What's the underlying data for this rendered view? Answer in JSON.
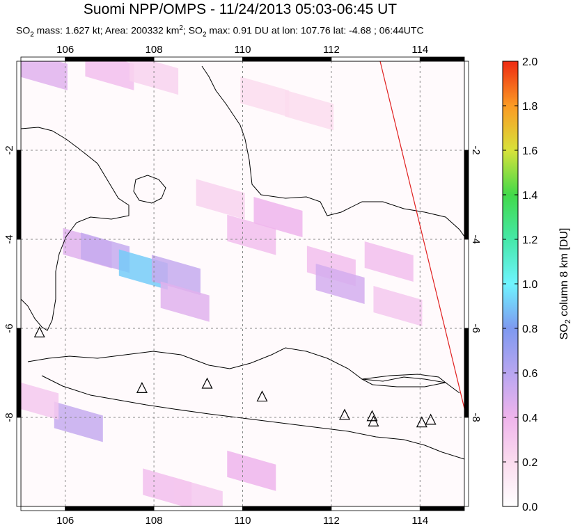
{
  "header": {
    "title": "Suomi NPP/OMPS - 11/24/2013 05:03-06:45 UT",
    "subtitle_parts": {
      "p1": "SO",
      "p1_sub": "2",
      "p2": " mass: 1.627 kt; Area: 200332 km",
      "p2_sup": "2",
      "p3": "; SO",
      "p3_sub": "2",
      "p4": " max: 0.91 DU at lon: 107.76 lat: -4.68 ; 06:44UTC"
    }
  },
  "chart_data": {
    "type": "heatmap",
    "title": "Suomi NPP/OMPS - 11/24/2013 05:03-06:45 UT",
    "xlim": [
      105,
      115
    ],
    "ylim": [
      -10,
      0
    ],
    "x_ticks": [
      106,
      108,
      110,
      112,
      114
    ],
    "y_ticks": [
      -2,
      -4,
      -6,
      -8
    ],
    "x_tick_labels": [
      "106",
      "108",
      "110",
      "112",
      "114"
    ],
    "y_tick_labels": [
      "-2",
      "-4",
      "-6",
      "-8"
    ],
    "grid": true,
    "colorbar": {
      "min": 0.0,
      "max": 2.0,
      "ticks": [
        "0.0",
        "0.2",
        "0.4",
        "0.6",
        "0.8",
        "1.0",
        "1.2",
        "1.4",
        "1.6",
        "1.8",
        "2.0"
      ],
      "label": "SO",
      "label_sub": "2",
      "label_rest": " column 8 km [DU]"
    },
    "so2_mass_kt": 1.627,
    "area_km2": 200332,
    "so2_max": {
      "value_du": 0.91,
      "lon": 107.76,
      "lat": -4.68,
      "time": "06:44UTC"
    },
    "pixels": [
      {
        "lon": 105.5,
        "lat": -0.2,
        "du": 0.45
      },
      {
        "lon": 107.0,
        "lat": -0.2,
        "du": 0.35
      },
      {
        "lon": 108.0,
        "lat": -0.3,
        "du": 0.25
      },
      {
        "lon": 110.5,
        "lat": -0.8,
        "du": 0.2
      },
      {
        "lon": 111.5,
        "lat": -1.1,
        "du": 0.2
      },
      {
        "lon": 109.5,
        "lat": -3.1,
        "du": 0.25
      },
      {
        "lon": 110.2,
        "lat": -3.9,
        "du": 0.35
      },
      {
        "lon": 110.8,
        "lat": -3.5,
        "du": 0.4
      },
      {
        "lon": 106.5,
        "lat": -4.2,
        "du": 0.45
      },
      {
        "lon": 106.9,
        "lat": -4.3,
        "du": 0.55
      },
      {
        "lon": 107.76,
        "lat": -4.68,
        "du": 0.91
      },
      {
        "lon": 108.5,
        "lat": -4.8,
        "du": 0.55
      },
      {
        "lon": 108.7,
        "lat": -5.4,
        "du": 0.45
      },
      {
        "lon": 112.0,
        "lat": -4.6,
        "du": 0.35
      },
      {
        "lon": 112.2,
        "lat": -5.0,
        "du": 0.5
      },
      {
        "lon": 113.3,
        "lat": -4.5,
        "du": 0.35
      },
      {
        "lon": 113.5,
        "lat": -5.5,
        "du": 0.3
      },
      {
        "lon": 106.3,
        "lat": -8.1,
        "du": 0.55
      },
      {
        "lon": 105.3,
        "lat": -7.6,
        "du": 0.3
      },
      {
        "lon": 110.2,
        "lat": -9.2,
        "du": 0.4
      },
      {
        "lon": 108.3,
        "lat": -9.6,
        "du": 0.35
      },
      {
        "lon": 109.0,
        "lat": -9.8,
        "du": 0.3
      }
    ],
    "volcanoes": [
      {
        "lon": 105.42,
        "lat": -6.1
      },
      {
        "lon": 107.73,
        "lat": -7.35
      },
      {
        "lon": 109.2,
        "lat": -7.25
      },
      {
        "lon": 110.44,
        "lat": -7.54
      },
      {
        "lon": 112.3,
        "lat": -7.95
      },
      {
        "lon": 112.92,
        "lat": -7.98
      },
      {
        "lon": 112.95,
        "lat": -8.1
      },
      {
        "lon": 114.04,
        "lat": -8.12
      },
      {
        "lon": 114.24,
        "lat": -8.06
      }
    ],
    "swath_edge": [
      [
        113.1,
        0.0
      ],
      [
        115.0,
        -7.8
      ]
    ]
  }
}
